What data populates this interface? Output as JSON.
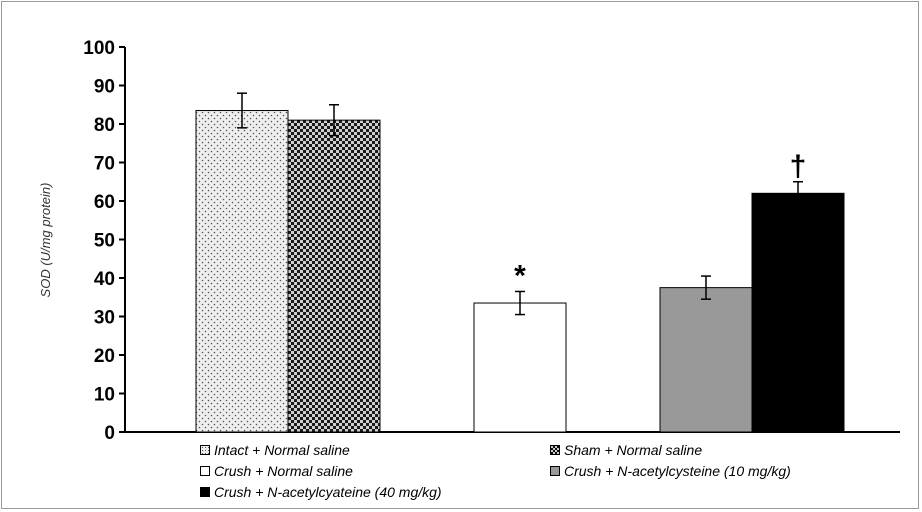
{
  "chart_data": {
    "type": "bar",
    "title": "",
    "xlabel": "",
    "ylabel": "SOD (U/mg protein)",
    "ylim": [
      0,
      100
    ],
    "yticks": [
      0,
      10,
      20,
      30,
      40,
      50,
      60,
      70,
      80,
      90,
      100
    ],
    "grid": false,
    "legend_position": "bottom",
    "groups": [
      {
        "bars": [
          {
            "name": "Intact + Normal saline",
            "value": 83.5,
            "error": 4.5,
            "pattern": "dots",
            "annotation": ""
          },
          {
            "name": "Sham + Normal saline",
            "value": 81.0,
            "error": 4.0,
            "pattern": "checker",
            "annotation": ""
          }
        ]
      },
      {
        "bars": [
          {
            "name": "Crush + Normal saline",
            "value": 33.5,
            "error": 3.0,
            "pattern": "white",
            "annotation": "*"
          }
        ]
      },
      {
        "bars": [
          {
            "name": "Crush + N-acetylcysteine (10 mg/kg)",
            "value": 37.5,
            "error": 3.0,
            "pattern": "gray",
            "annotation": ""
          },
          {
            "name": "Crush + N-acetylcyateine (40 mg/kg)",
            "value": 62.0,
            "error": 3.0,
            "pattern": "black",
            "annotation": "†"
          }
        ]
      }
    ],
    "legend": [
      {
        "label": "Intact + Normal saline",
        "pattern": "dots"
      },
      {
        "label": "Sham + Normal saline",
        "pattern": "checker"
      },
      {
        "label": "Crush + Normal saline",
        "pattern": "white"
      },
      {
        "label": "Crush + N-acetylcysteine (10 mg/kg)",
        "pattern": "gray"
      },
      {
        "label": "Crush + N-acetylcyateine (40 mg/kg)",
        "pattern": "black"
      }
    ],
    "colors": {
      "gray": "#999999",
      "black": "#000000",
      "white": "#ffffff",
      "axis": "#000000"
    }
  }
}
